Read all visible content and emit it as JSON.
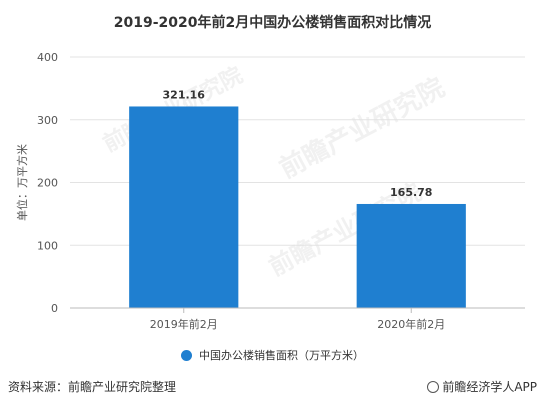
{
  "chart_data": {
    "type": "bar",
    "title": "2019-2020年前2月中国办公楼销售面积对比情况",
    "categories": [
      "2019年前2月",
      "2020年前2月"
    ],
    "series": [
      {
        "name": "中国办公楼销售面积（万平方米）",
        "values": [
          321.16,
          165.78
        ],
        "labels": [
          "321.16",
          "165.78"
        ]
      }
    ],
    "ylabel": "单位：万平方米",
    "xlabel": "",
    "ylim": [
      0,
      400
    ],
    "yticks": [
      0,
      100,
      200,
      300,
      400
    ],
    "grid": true,
    "legend_position": "bottom",
    "bar_color": "#1f7fd0"
  },
  "footer": {
    "source": "资料来源：前瞻产业研究院整理",
    "brand": "前瞻经济学人APP"
  },
  "watermark": {
    "text": "前瞻产业研究院"
  }
}
